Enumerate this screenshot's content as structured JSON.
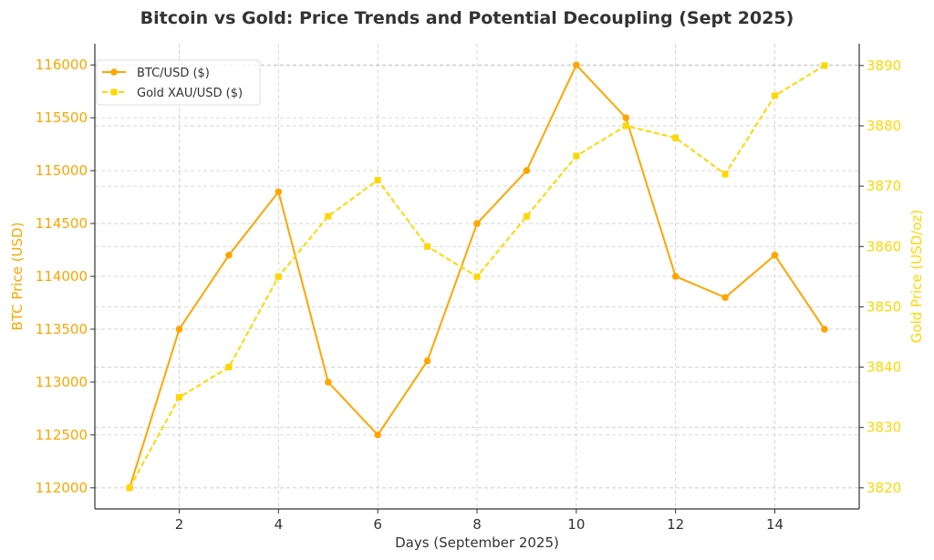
{
  "chart_data": {
    "type": "line",
    "title": "Bitcoin vs Gold: Price Trends and Potential Decoupling (Sept 2025)",
    "xlabel": "Days (September 2025)",
    "ylabel_left": "BTC Price (USD)",
    "ylabel_right": "Gold Price (USD/oz)",
    "x": [
      1,
      2,
      3,
      4,
      5,
      6,
      7,
      8,
      9,
      10,
      11,
      12,
      13,
      14,
      15
    ],
    "xlim": [
      0.3,
      15.7
    ],
    "xticks": [
      2,
      4,
      6,
      8,
      10,
      12,
      14
    ],
    "ylim_left": [
      111800,
      116200
    ],
    "yticks_left": [
      112000,
      112500,
      113000,
      113500,
      114000,
      114500,
      115000,
      115500,
      116000
    ],
    "ylim_right": [
      3816.5,
      3893.6
    ],
    "yticks_right": [
      3820,
      3830,
      3840,
      3850,
      3860,
      3870,
      3880,
      3890
    ],
    "grid": true,
    "legend_position": "top-left",
    "series": [
      {
        "name": "BTC/USD ($)",
        "axis": "left",
        "color": "#FFA500",
        "style": "solid",
        "marker": "circle",
        "values": [
          112000,
          113500,
          114200,
          114800,
          113000,
          112500,
          113200,
          114500,
          115000,
          116000,
          115500,
          114000,
          113800,
          114200,
          113500
        ]
      },
      {
        "name": "Gold XAU/USD ($)",
        "axis": "right",
        "color": "#FFD700",
        "style": "dashed",
        "marker": "square",
        "values": [
          3820,
          3835,
          3840,
          3855,
          3865,
          3871,
          3860,
          3855,
          3865,
          3875,
          3880,
          3878,
          3872,
          3885,
          3890
        ]
      }
    ],
    "colors": {
      "left_axis": "#FFA500",
      "right_axis": "#FFD700",
      "text": "#333333"
    }
  }
}
